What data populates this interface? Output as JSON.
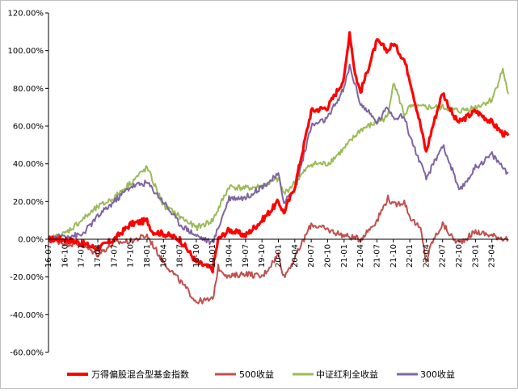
{
  "chart_data": {
    "type": "line",
    "title": "",
    "xlabel": "",
    "ylabel": "",
    "ylim": [
      -60,
      120
    ],
    "y_step": 20,
    "y_tick_labels": [
      "120.00%",
      "100.00%",
      "80.00%",
      "60.00%",
      "40.00%",
      "20.00%",
      "0.00%",
      "-20.00%",
      "-40.00%",
      "-60.00%"
    ],
    "x_tick_labels": [
      "16-07",
      "16-10",
      "17-01",
      "17-04",
      "17-07",
      "17-10",
      "18-01",
      "18-04",
      "18-07",
      "18-10",
      "19-01",
      "19-04",
      "19-07",
      "19-10",
      "20-01",
      "20-04",
      "20-07",
      "20-10",
      "21-01",
      "21-04",
      "21-07",
      "21-10",
      "22-01",
      "22-04",
      "22-07",
      "22-10",
      "23-01",
      "23-04"
    ],
    "x_range": [
      "2016-07",
      "2023-07"
    ],
    "grid": false,
    "legend_position": "bottom",
    "series": [
      {
        "name": "万得偏股混合型基金指数",
        "color": "#ff0000",
        "line_width": "thick",
        "x": [
          "2016-07",
          "2016-10",
          "2017-01",
          "2017-04",
          "2017-07",
          "2017-10",
          "2018-01",
          "2018-02",
          "2018-04",
          "2018-07",
          "2018-10",
          "2019-01",
          "2019-02",
          "2019-04",
          "2019-07",
          "2019-10",
          "2020-01",
          "2020-02",
          "2020-04",
          "2020-07",
          "2020-10",
          "2021-01",
          "2021-02",
          "2021-03",
          "2021-04",
          "2021-07",
          "2021-09",
          "2021-10",
          "2021-12",
          "2022-01",
          "2022-03",
          "2022-04",
          "2022-05",
          "2022-07",
          "2022-09",
          "2022-10",
          "2023-01",
          "2023-04",
          "2023-06",
          "2023-07"
        ],
        "y": [
          0,
          0,
          -2,
          -5,
          0,
          8,
          10,
          4,
          3,
          0,
          -12,
          -16,
          0,
          5,
          2,
          10,
          20,
          14,
          28,
          68,
          70,
          85,
          110,
          88,
          78,
          105,
          100,
          104,
          95,
          85,
          60,
          46,
          58,
          78,
          65,
          62,
          68,
          62,
          56,
          55
        ]
      },
      {
        "name": "500收益",
        "color": "#c0504d",
        "line_width": "normal",
        "x": [
          "2016-07",
          "2016-10",
          "2017-01",
          "2017-04",
          "2017-07",
          "2017-10",
          "2018-01",
          "2018-04",
          "2018-07",
          "2018-10",
          "2019-01",
          "2019-02",
          "2019-04",
          "2019-07",
          "2019-10",
          "2020-01",
          "2020-02",
          "2020-04",
          "2020-07",
          "2020-10",
          "2021-01",
          "2021-04",
          "2021-07",
          "2021-09",
          "2021-10",
          "2021-12",
          "2022-01",
          "2022-03",
          "2022-04",
          "2022-05",
          "2022-07",
          "2022-09",
          "2022-10",
          "2023-01",
          "2023-04",
          "2023-07"
        ],
        "y": [
          0,
          -2,
          -3,
          -8,
          -2,
          -1,
          2,
          -12,
          -22,
          -33,
          -32,
          -15,
          -20,
          -18,
          -20,
          -8,
          -20,
          -10,
          8,
          5,
          2,
          0,
          10,
          22,
          18,
          20,
          12,
          5,
          -12,
          -2,
          8,
          0,
          -2,
          4,
          2,
          0
        ]
      },
      {
        "name": "中证红利全收益",
        "color": "#9bbb59",
        "line_width": "normal",
        "x": [
          "2016-07",
          "2016-10",
          "2017-01",
          "2017-04",
          "2017-07",
          "2017-10",
          "2018-01",
          "2018-04",
          "2018-07",
          "2018-10",
          "2019-01",
          "2019-04",
          "2019-07",
          "2019-10",
          "2020-01",
          "2020-02",
          "2020-04",
          "2020-07",
          "2020-10",
          "2021-01",
          "2021-04",
          "2021-07",
          "2021-09",
          "2021-10",
          "2021-12",
          "2022-01",
          "2022-04",
          "2022-07",
          "2022-10",
          "2023-01",
          "2023-04",
          "2023-06",
          "2023-07"
        ],
        "y": [
          0,
          3,
          10,
          17,
          22,
          30,
          38,
          18,
          12,
          6,
          10,
          28,
          27,
          28,
          32,
          24,
          30,
          40,
          40,
          48,
          58,
          62,
          65,
          84,
          66,
          70,
          70,
          70,
          68,
          70,
          74,
          90,
          77
        ]
      },
      {
        "name": "300收益",
        "color": "#8064a2",
        "line_width": "normal",
        "x": [
          "2016-07",
          "2016-10",
          "2017-01",
          "2017-04",
          "2017-07",
          "2017-10",
          "2018-01",
          "2018-04",
          "2018-07",
          "2018-10",
          "2019-01",
          "2019-04",
          "2019-07",
          "2019-10",
          "2020-01",
          "2020-02",
          "2020-04",
          "2020-07",
          "2020-10",
          "2021-01",
          "2021-02",
          "2021-04",
          "2021-07",
          "2021-09",
          "2021-10",
          "2021-12",
          "2022-01",
          "2022-04",
          "2022-07",
          "2022-09",
          "2022-10",
          "2023-01",
          "2023-04",
          "2023-07"
        ],
        "y": [
          0,
          2,
          2,
          12,
          20,
          28,
          30,
          20,
          8,
          2,
          -2,
          22,
          22,
          28,
          34,
          20,
          26,
          60,
          64,
          80,
          92,
          72,
          62,
          70,
          65,
          65,
          55,
          32,
          50,
          35,
          25,
          38,
          45,
          35
        ]
      }
    ]
  }
}
